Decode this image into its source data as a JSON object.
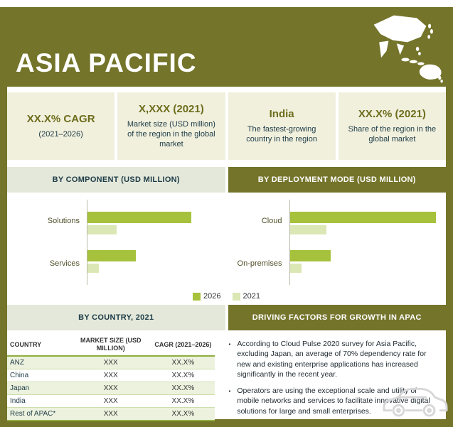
{
  "header": {
    "title": "ASIA PACIFIC"
  },
  "stat_cards": [
    {
      "value": "XX.X% CAGR",
      "desc": "(2021–2026)"
    },
    {
      "value": "X,XXX (2021)",
      "desc": "Market size (USD million) of the region in the global market"
    },
    {
      "value": "India",
      "desc": "The fastest-growing country in the region"
    },
    {
      "value": "XX.X% (2021)",
      "desc": "Share of the region in the global market"
    }
  ],
  "sections": {
    "component": "BY COMPONENT (USD MILLION)",
    "deployment": "BY DEPLOYMENT MODE (USD MILLION)",
    "country": "BY COUNTRY, 2021",
    "driving": "DRIVING FACTORS FOR GROWTH IN APAC"
  },
  "chart_data": [
    {
      "type": "bar",
      "orientation": "horizontal",
      "title": "BY COMPONENT (USD MILLION)",
      "categories": [
        "Solutions",
        "Services"
      ],
      "series": [
        {
          "name": "2026",
          "values": [
            100,
            47
          ]
        },
        {
          "name": "2021",
          "values": [
            28,
            11
          ]
        }
      ],
      "units": "USD Million",
      "value_labels": false,
      "note_axis": "values not labeled; relative estimates"
    },
    {
      "type": "bar",
      "orientation": "horizontal",
      "title": "BY DEPLOYMENT MODE (USD MILLION)",
      "categories": [
        "Cloud",
        "On-premises"
      ],
      "series": [
        {
          "name": "2026",
          "values": [
            100,
            28
          ]
        },
        {
          "name": "2021",
          "values": [
            25,
            8
          ]
        }
      ],
      "units": "USD Million",
      "value_labels": false,
      "note_axis": "values not labeled; relative estimates"
    },
    {
      "type": "table",
      "title": "BY COUNTRY, 2021",
      "columns": [
        "COUNTRY",
        "MARKET SIZE (USD MILLION)",
        "CAGR (2021–2026)"
      ],
      "rows": [
        {
          "country": "ANZ",
          "market_size": "XXX",
          "cagr": "XX.X%"
        },
        {
          "country": "China",
          "market_size": "XXX",
          "cagr": "XX.X%"
        },
        {
          "country": "Japan",
          "market_size": "XXX",
          "cagr": "XX.X%"
        },
        {
          "country": "India",
          "market_size": "XXX",
          "cagr": "XX.X%"
        },
        {
          "country": "Rest of APAC*",
          "market_size": "XXX",
          "cagr": "XX.X%"
        }
      ]
    }
  ],
  "driving_factors": {
    "items": [
      "According to Cloud Pulse 2020 survey for Asia Pacific, excluding Japan, an average of 70% dependency rate for new and existing enterprise applications has increased significantly in the recent year.",
      "Operators are using the exceptional scale and utility of mobile networks and services to facilitate innovative digital solutions for large and small enterprises."
    ]
  },
  "colors": {
    "olive": "#74742b",
    "bar_2026": "#a6c23d",
    "bar_2021": "#dbe7b4",
    "card_bg": "#f1f0dd",
    "band_light": "#e4e8da"
  }
}
